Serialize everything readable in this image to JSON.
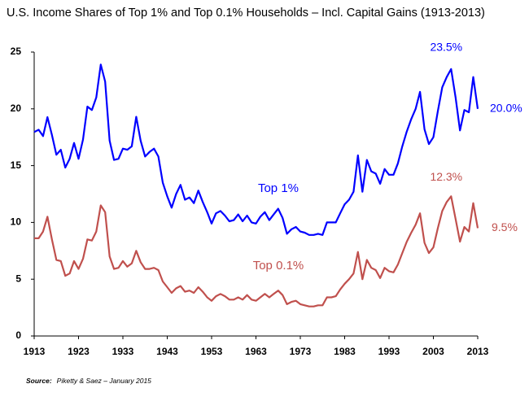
{
  "chart_data": {
    "type": "line",
    "title": "U.S. Income Shares of Top 1% and Top 0.1% Households – Incl. Capital Gains (1913-2013)",
    "x": [
      1913,
      1914,
      1915,
      1916,
      1917,
      1918,
      1919,
      1920,
      1921,
      1922,
      1923,
      1924,
      1925,
      1926,
      1927,
      1928,
      1929,
      1930,
      1931,
      1932,
      1933,
      1934,
      1935,
      1936,
      1937,
      1938,
      1939,
      1940,
      1941,
      1942,
      1943,
      1944,
      1945,
      1946,
      1947,
      1948,
      1949,
      1950,
      1951,
      1952,
      1953,
      1954,
      1955,
      1956,
      1957,
      1958,
      1959,
      1960,
      1961,
      1962,
      1963,
      1964,
      1965,
      1966,
      1967,
      1968,
      1969,
      1970,
      1971,
      1972,
      1973,
      1974,
      1975,
      1976,
      1977,
      1978,
      1979,
      1980,
      1981,
      1982,
      1983,
      1984,
      1985,
      1986,
      1987,
      1988,
      1989,
      1990,
      1991,
      1992,
      1993,
      1994,
      1995,
      1996,
      1997,
      1998,
      1999,
      2000,
      2001,
      2002,
      2003,
      2004,
      2005,
      2006,
      2007,
      2008,
      2009,
      2010,
      2011,
      2012,
      2013
    ],
    "series": [
      {
        "name": "Top 1%",
        "color": "#0000ff",
        "values": [
          17.96,
          18.16,
          17.6,
          19.27,
          17.7,
          15.96,
          16.4,
          14.83,
          15.6,
          17.0,
          15.6,
          17.3,
          20.2,
          19.9,
          21.0,
          23.9,
          22.4,
          17.2,
          15.5,
          15.6,
          16.5,
          16.4,
          16.7,
          19.3,
          17.2,
          15.8,
          16.2,
          16.5,
          15.8,
          13.5,
          12.3,
          11.3,
          12.5,
          13.3,
          12.0,
          12.2,
          11.7,
          12.8,
          11.8,
          10.9,
          9.9,
          10.8,
          11.0,
          10.6,
          10.1,
          10.2,
          10.7,
          10.1,
          10.6,
          10.0,
          9.9,
          10.5,
          10.9,
          10.2,
          10.7,
          11.2,
          10.4,
          9.0,
          9.4,
          9.6,
          9.2,
          9.1,
          8.9,
          8.9,
          9.0,
          8.9,
          10.0,
          10.0,
          10.0,
          10.8,
          11.6,
          12.0,
          12.7,
          15.9,
          12.7,
          15.5,
          14.5,
          14.3,
          13.4,
          14.7,
          14.2,
          14.2,
          15.2,
          16.7,
          18.0,
          19.1,
          20.0,
          21.5,
          18.2,
          16.9,
          17.5,
          19.8,
          21.9,
          22.8,
          23.5,
          21.0,
          18.1,
          19.9,
          19.7,
          22.8,
          20.0
        ]
      },
      {
        "name": "Top 0.1%",
        "color": "#c0504d",
        "values": [
          8.6,
          8.6,
          9.2,
          10.5,
          8.5,
          6.7,
          6.6,
          5.3,
          5.5,
          6.6,
          5.9,
          6.8,
          8.5,
          8.4,
          9.2,
          11.5,
          10.9,
          7.0,
          5.9,
          6.0,
          6.6,
          6.1,
          6.4,
          7.5,
          6.5,
          5.9,
          5.9,
          6.0,
          5.8,
          4.8,
          4.3,
          3.8,
          4.2,
          4.4,
          3.9,
          4.0,
          3.8,
          4.3,
          3.9,
          3.4,
          3.1,
          3.5,
          3.7,
          3.5,
          3.2,
          3.2,
          3.4,
          3.2,
          3.6,
          3.2,
          3.1,
          3.4,
          3.7,
          3.4,
          3.7,
          4.0,
          3.6,
          2.8,
          3.0,
          3.1,
          2.8,
          2.7,
          2.6,
          2.6,
          2.7,
          2.7,
          3.4,
          3.4,
          3.5,
          4.1,
          4.6,
          5.0,
          5.5,
          7.4,
          5.0,
          6.7,
          6.0,
          5.8,
          5.1,
          6.0,
          5.7,
          5.6,
          6.3,
          7.3,
          8.3,
          9.1,
          9.8,
          10.8,
          8.2,
          7.3,
          7.8,
          9.5,
          11.0,
          11.8,
          12.3,
          10.3,
          8.3,
          9.6,
          9.2,
          11.7,
          9.5
        ]
      }
    ],
    "value_labels": [
      {
        "series": 0,
        "text": "23.5%",
        "index": 94
      },
      {
        "series": 0,
        "text": "20.0%",
        "index": 100
      },
      {
        "series": 1,
        "text": "12.3%",
        "index": 94
      },
      {
        "series": 1,
        "text": "9.5%",
        "index": 100
      }
    ],
    "xlim": [
      1913,
      2013
    ],
    "xticks": [
      1913,
      1923,
      1933,
      1943,
      1953,
      1963,
      1973,
      1983,
      1993,
      2003,
      2013
    ],
    "ylim": [
      0,
      25
    ],
    "yticks": [
      0,
      5,
      10,
      15,
      20,
      25
    ],
    "grid": false,
    "source_label": "Source:",
    "source": "Piketty & Saez – January 2015"
  }
}
